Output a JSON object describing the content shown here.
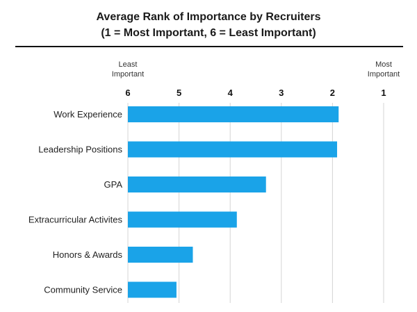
{
  "header": {
    "title_line1": "Average Rank of Importance by Recruiters",
    "title_line2": "(1 = Most Important, 6 = Least Important)"
  },
  "chart_data": {
    "type": "bar",
    "orientation": "horizontal",
    "title": "Average Rank of Importance by Recruiters (1 = Most Important, 6 = Least Important)",
    "categories": [
      "Work Experience",
      "Leadership Positions",
      "GPA",
      "Extracurricular Activites",
      "Honors & Awards",
      "Community Service"
    ],
    "values": [
      1.88,
      1.91,
      3.3,
      3.87,
      4.73,
      5.05
    ],
    "xlim": [
      6,
      1
    ],
    "x_ticks": [
      "6",
      "5",
      "4",
      "3",
      "2",
      "1"
    ],
    "axis_left_note": [
      "Least",
      "Important"
    ],
    "axis_right_note": [
      "Most",
      "Important"
    ],
    "bar_color": "#1aa3e8",
    "grid_color": "#d4d4d4",
    "grid": true,
    "legend": "none"
  }
}
